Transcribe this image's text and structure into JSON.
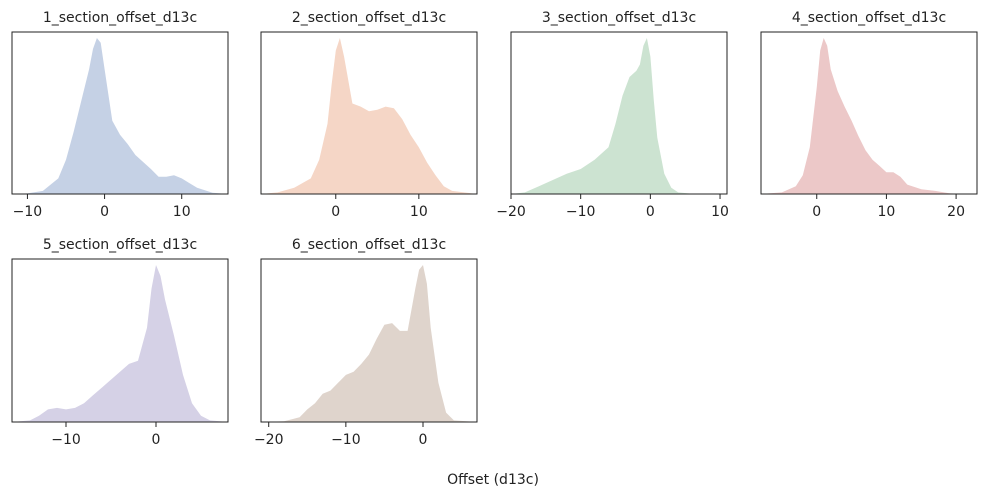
{
  "chart_data": {
    "type": "area",
    "xlabel": "Offset (d13c)",
    "panels": [
      {
        "title": "1_section_offset_d13c",
        "color": "#c5d1e5",
        "xlim": [
          -12,
          16
        ],
        "xticks": [
          -10,
          0,
          10
        ],
        "x": [
          -12,
          -10,
          -8,
          -6,
          -5,
          -4,
          -3,
          -2,
          -1.5,
          -1,
          -0.5,
          0,
          1,
          2,
          3,
          4,
          6,
          7,
          8,
          9,
          10,
          11,
          12,
          14,
          16
        ],
        "y": [
          0,
          0.004,
          0.02,
          0.1,
          0.22,
          0.4,
          0.6,
          0.8,
          0.93,
          1.0,
          0.97,
          0.8,
          0.47,
          0.38,
          0.32,
          0.25,
          0.16,
          0.11,
          0.11,
          0.12,
          0.1,
          0.07,
          0.04,
          0.008,
          0
        ]
      },
      {
        "title": "2_section_offset_d13c",
        "color": "#f5d6c6",
        "xlim": [
          -9,
          17
        ],
        "xticks": [
          0,
          10
        ],
        "x": [
          -9,
          -7,
          -5,
          -3,
          -2,
          -1,
          -0.5,
          0,
          0.5,
          1,
          2,
          3,
          4,
          5,
          6,
          7,
          8,
          9,
          10,
          11,
          12,
          13,
          14,
          17
        ],
        "y": [
          0,
          0.01,
          0.04,
          0.1,
          0.22,
          0.45,
          0.7,
          0.92,
          1.0,
          0.88,
          0.58,
          0.56,
          0.53,
          0.54,
          0.56,
          0.55,
          0.48,
          0.38,
          0.3,
          0.2,
          0.12,
          0.05,
          0.02,
          0
        ]
      },
      {
        "title": "3_section_offset_d13c",
        "color": "#cce3d1",
        "xlim": [
          -20,
          11
        ],
        "xticks": [
          -20,
          -10,
          0,
          10
        ],
        "x": [
          -20,
          -18,
          -16,
          -14,
          -12,
          -10,
          -8,
          -6,
          -5,
          -4,
          -3,
          -2,
          -1.5,
          -1,
          -0.5,
          0,
          0.5,
          1,
          2,
          3,
          4,
          6,
          8,
          11
        ],
        "y": [
          0,
          0.01,
          0.05,
          0.09,
          0.13,
          0.16,
          0.22,
          0.3,
          0.45,
          0.63,
          0.75,
          0.79,
          0.83,
          0.95,
          1.0,
          0.88,
          0.6,
          0.36,
          0.13,
          0.04,
          0.01,
          0.002,
          0,
          0
        ]
      },
      {
        "title": "4_section_offset_d13c",
        "color": "#ecc8c8",
        "xlim": [
          -8,
          23
        ],
        "xticks": [
          0,
          10,
          20
        ],
        "x": [
          -8,
          -5,
          -3,
          -2,
          -1,
          0,
          0.5,
          1,
          1.5,
          2,
          3,
          4,
          5,
          6,
          7,
          8,
          9,
          10,
          11,
          12,
          13,
          15,
          17,
          19,
          21,
          23
        ],
        "y": [
          0,
          0.01,
          0.05,
          0.12,
          0.3,
          0.68,
          0.92,
          1.0,
          0.95,
          0.8,
          0.66,
          0.56,
          0.47,
          0.37,
          0.28,
          0.22,
          0.18,
          0.14,
          0.14,
          0.11,
          0.06,
          0.03,
          0.02,
          0.005,
          0,
          0
        ]
      },
      {
        "title": "5_section_offset_d13c",
        "color": "#d5d1e6",
        "xlim": [
          -16,
          8
        ],
        "xticks": [
          -10,
          0
        ],
        "x": [
          -16,
          -14,
          -13,
          -12,
          -11,
          -10,
          -9,
          -8,
          -7,
          -6,
          -5,
          -4,
          -3,
          -2,
          -1,
          -0.5,
          0,
          0.5,
          1,
          2,
          3,
          4,
          5,
          6,
          8
        ],
        "y": [
          0,
          0.01,
          0.04,
          0.08,
          0.09,
          0.08,
          0.09,
          0.12,
          0.17,
          0.22,
          0.27,
          0.32,
          0.37,
          0.39,
          0.6,
          0.85,
          1.0,
          0.93,
          0.78,
          0.55,
          0.3,
          0.12,
          0.04,
          0.01,
          0
        ]
      },
      {
        "title": "6_section_offset_d13c",
        "color": "#dfd4cc",
        "xlim": [
          -21,
          7
        ],
        "xticks": [
          -20,
          -10,
          0
        ],
        "x": [
          -21,
          -18,
          -16,
          -15,
          -14,
          -13,
          -12,
          -11,
          -10,
          -9,
          -8,
          -7,
          -6,
          -5,
          -4,
          -3,
          -2,
          -1,
          -0.5,
          0,
          0.5,
          1,
          2,
          3,
          4,
          7
        ],
        "y": [
          0,
          0.005,
          0.03,
          0.08,
          0.12,
          0.18,
          0.2,
          0.25,
          0.3,
          0.32,
          0.37,
          0.43,
          0.53,
          0.62,
          0.63,
          0.58,
          0.58,
          0.85,
          0.97,
          1.0,
          0.88,
          0.6,
          0.25,
          0.06,
          0.01,
          0
        ]
      }
    ]
  }
}
